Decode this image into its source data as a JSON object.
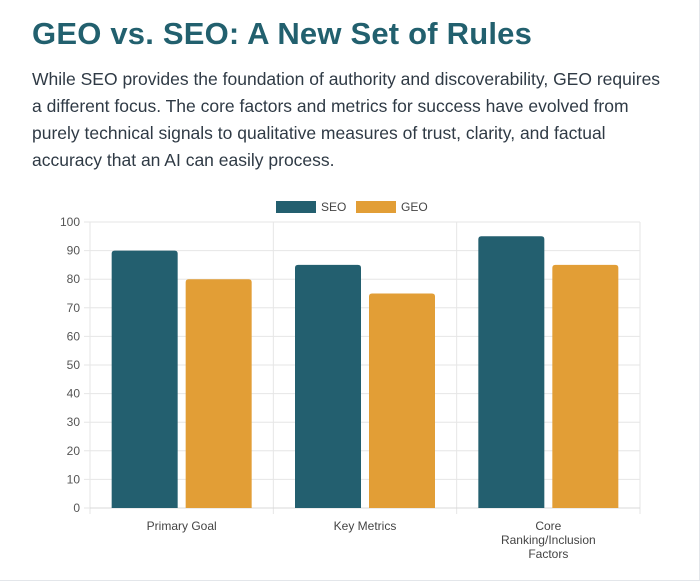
{
  "page": {
    "title": "GEO vs. SEO: A New Set of Rules",
    "description": "While SEO provides the foundation of authority and discoverability, GEO requires a different focus. The core factors and metrics for success have evolved from purely technical signals to qualitative measures of trust, clarity, and factual accuracy that an AI can easily process."
  },
  "chart_data": {
    "type": "bar",
    "categories": [
      [
        "Primary Goal"
      ],
      [
        "Key Metrics"
      ],
      [
        "Core",
        "Ranking/Inclusion",
        "Factors"
      ]
    ],
    "series": [
      {
        "name": "SEO",
        "color": "#235f6f",
        "values": [
          90,
          85,
          95
        ]
      },
      {
        "name": "GEO",
        "color": "#e29e36",
        "values": [
          80,
          75,
          85
        ]
      }
    ],
    "ylim": [
      0,
      100
    ],
    "y_ticks": [
      0,
      10,
      20,
      30,
      40,
      50,
      60,
      70,
      80,
      90,
      100
    ],
    "grid": true,
    "legend_position": "top-center"
  }
}
